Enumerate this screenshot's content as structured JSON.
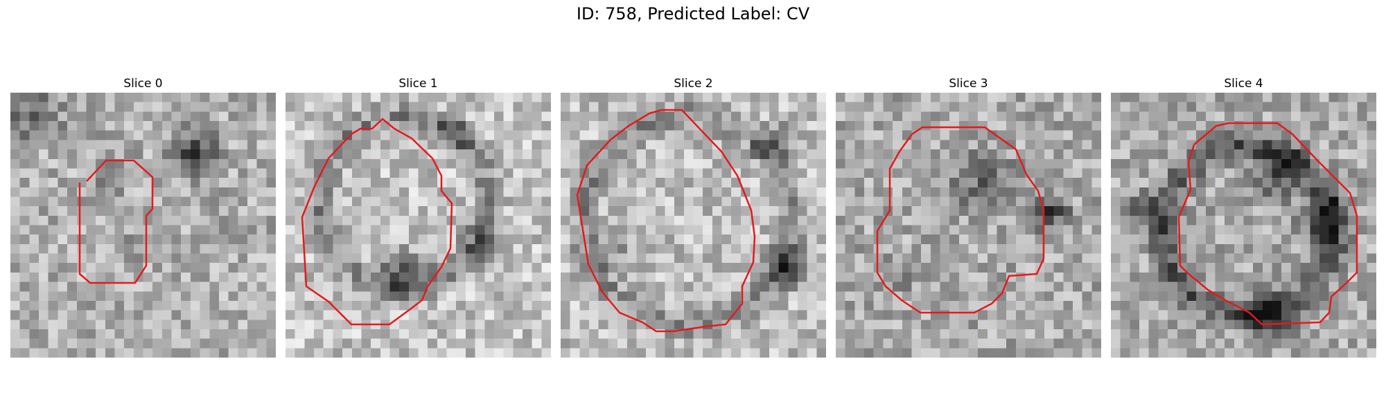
{
  "figure": {
    "title": "ID: 758, Predicted Label: CV"
  },
  "panels": [
    {
      "title": "Slice 0"
    },
    {
      "title": "Slice 1"
    },
    {
      "title": "Slice 2"
    },
    {
      "title": "Slice 3"
    },
    {
      "title": "Slice 4"
    }
  ],
  "style": {
    "contour_color": "#e41a1c",
    "colormap": "grayscale"
  }
}
